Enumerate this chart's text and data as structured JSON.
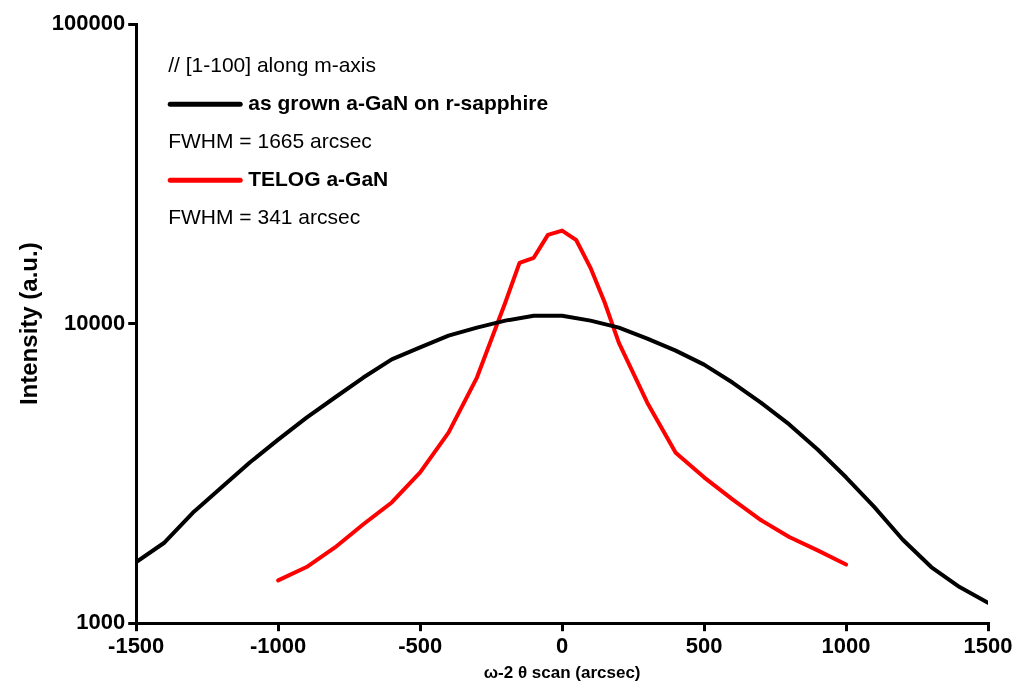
{
  "chart_data": {
    "type": "line",
    "xlabel": "ω-2 θ scan (arcsec)",
    "ylabel": "Intensity (a.u.)",
    "log": "y",
    "grid": false,
    "legend": "top left",
    "marker": "none",
    "line_style": "solid",
    "xlim": [
      -1500,
      1500
    ],
    "xticks": [
      -1500,
      -1000,
      -500,
      0,
      500,
      1000,
      1500
    ],
    "ylim": [
      1000,
      100000
    ],
    "yticks": [
      1000,
      10000,
      100000
    ],
    "annotations": [
      "// [1-100] along m-axis",
      "FWHM = 1665 arcsec",
      "FWHM = 341 arcsec"
    ],
    "series": [
      {
        "name": "as grown a-GaN on r-sapphire",
        "color": "#000000",
        "x": [
          -1500,
          -1400,
          -1300,
          -1200,
          -1100,
          -1000,
          -900,
          -800,
          -700,
          -600,
          -500,
          -400,
          -300,
          -200,
          -100,
          0,
          100,
          200,
          300,
          400,
          500,
          600,
          700,
          800,
          900,
          1000,
          1100,
          1200,
          1300,
          1400,
          1500
        ],
        "values": [
          1600,
          1860,
          2340,
          2840,
          3440,
          4100,
          4860,
          5670,
          6610,
          7600,
          8330,
          9120,
          9700,
          10240,
          10630,
          10630,
          10240,
          9700,
          8920,
          8130,
          7300,
          6360,
          5450,
          4610,
          3800,
          3070,
          2440,
          1900,
          1540,
          1320,
          1170
        ]
      },
      {
        "name": "TELOG a-GaN",
        "color": "#ff0000",
        "x": [
          -1000,
          -900,
          -800,
          -700,
          -600,
          -500,
          -400,
          -300,
          -200,
          -150,
          -100,
          -50,
          0,
          50,
          100,
          150,
          200,
          300,
          400,
          500,
          600,
          700,
          800,
          900,
          1000
        ],
        "values": [
          1390,
          1540,
          1790,
          2140,
          2530,
          3190,
          4330,
          6610,
          11770,
          15970,
          16600,
          19800,
          20460,
          19000,
          15370,
          11770,
          8630,
          5450,
          3710,
          3070,
          2590,
          2210,
          1940,
          1750,
          1570
        ]
      }
    ]
  }
}
